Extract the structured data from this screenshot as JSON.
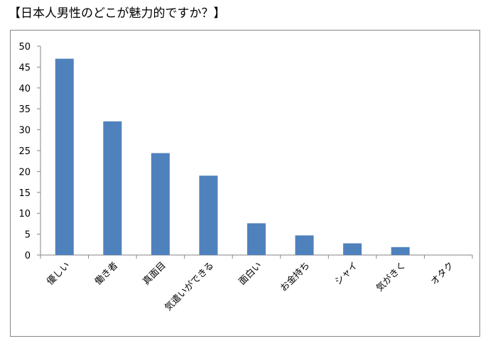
{
  "page": {
    "title": "【日本人男性のどこが魅力的ですか？】"
  },
  "chart_data": {
    "type": "bar",
    "title": "【日本人男性のどこが魅力的ですか？】",
    "xlabel": "",
    "ylabel": "",
    "categories": [
      "優しい",
      "働き者",
      "真面目",
      "気遣いができる",
      "面白い",
      "お金持ち",
      "シャイ",
      "気がきく",
      "オタク"
    ],
    "values": [
      47,
      32,
      24.4,
      19,
      7.6,
      4.7,
      2.8,
      1.9,
      0
    ],
    "yticks": [
      "0",
      "5",
      "10",
      "15",
      "20",
      "25",
      "30",
      "35",
      "40",
      "45",
      "50"
    ],
    "ylim": [
      0,
      50
    ],
    "bar_color": "#4F81BD",
    "grid": false,
    "legend": "none"
  }
}
